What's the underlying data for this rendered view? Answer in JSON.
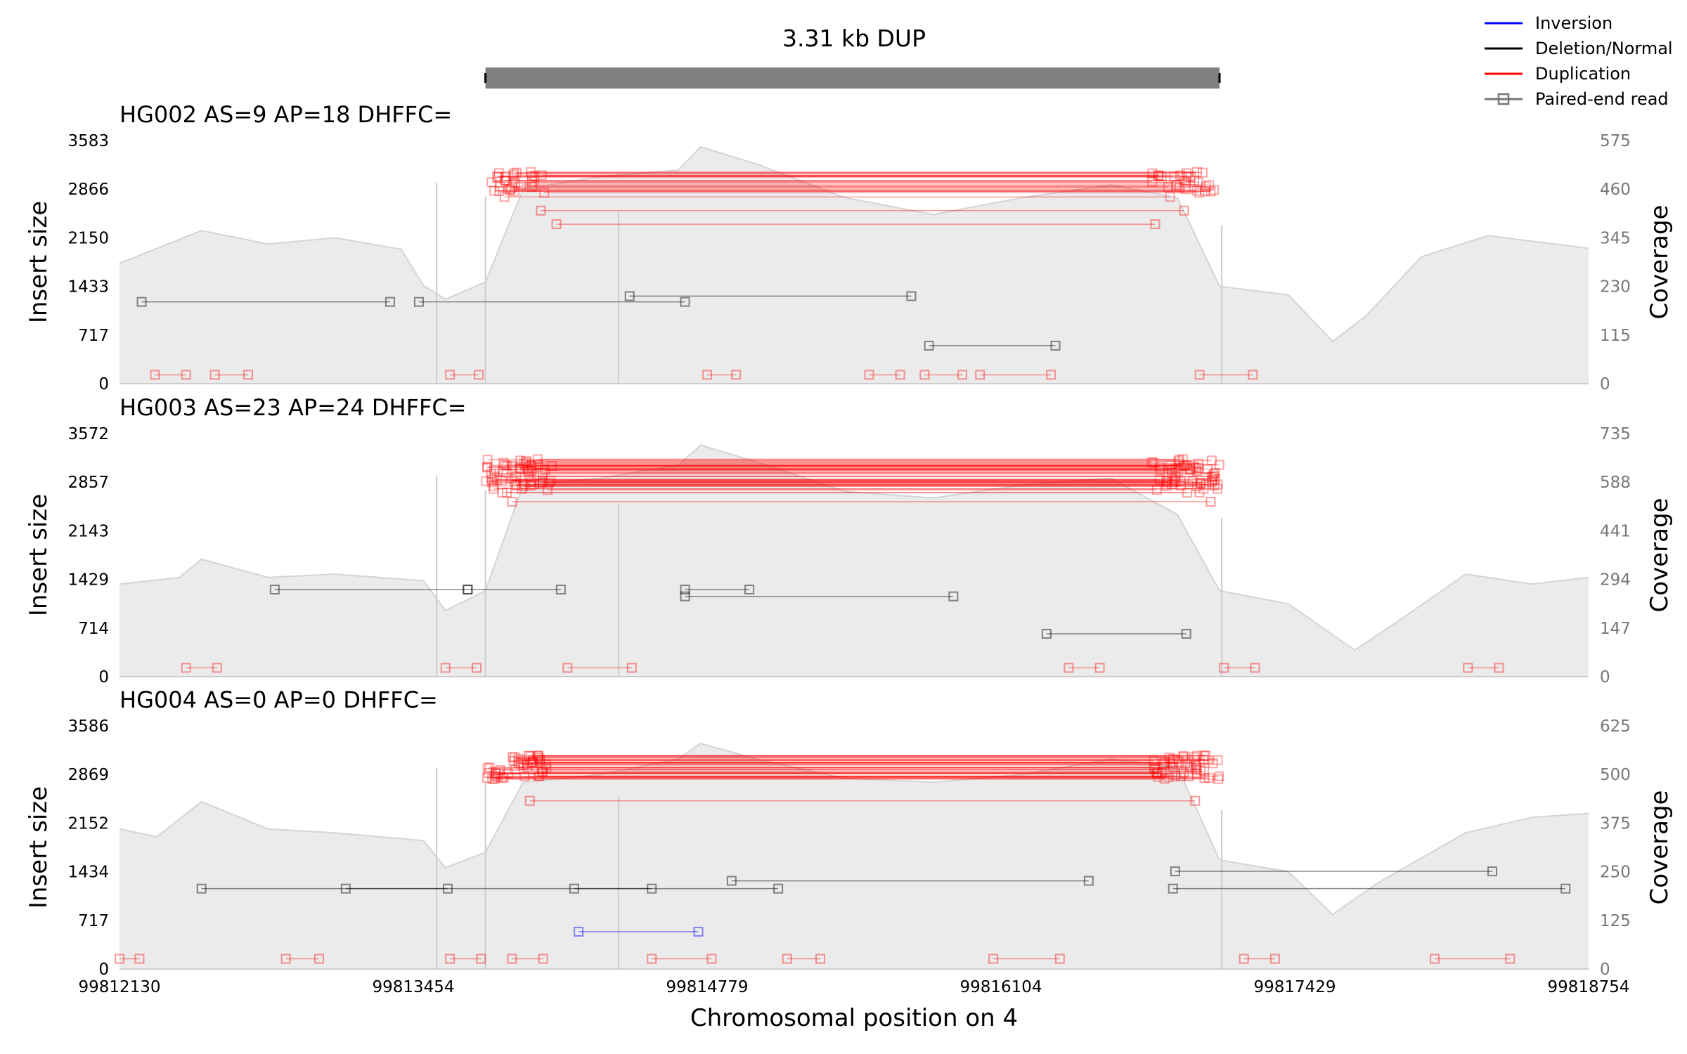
{
  "chart_data": {
    "type": "line",
    "title": "3.31 kb DUP",
    "xlabel": "Chromosomal position on 4",
    "x_ticks": [
      "99812130",
      "99813454",
      "99814779",
      "99816104",
      "99817429",
      "99818754"
    ],
    "xlim": [
      99812130,
      99818754
    ],
    "sv_region": [
      99813780,
      99817090
    ],
    "grid": false,
    "legend": {
      "placement": "top-right",
      "entries": [
        {
          "label": "Inversion",
          "color": "#0000ff"
        },
        {
          "label": "Deletion/Normal",
          "color": "#000000"
        },
        {
          "label": "Duplication",
          "color": "#ff0000"
        },
        {
          "label": "Paired-end read",
          "color": "#777777"
        }
      ]
    },
    "panels": [
      {
        "title": "HG002 AS=9 AP=18 DHFFC=",
        "ylabel_left": "Insert size",
        "ylabel_right": "Coverage",
        "yticks_left": [
          "3583",
          "2866",
          "2150",
          "1433",
          "717",
          "0"
        ],
        "yticks_right": [
          "575",
          "460",
          "345",
          "230",
          "115",
          "0"
        ],
        "ylim_left": [
          0,
          3583
        ],
        "ylim_right": [
          0,
          575
        ],
        "coverage_profile": [
          [
            99812130,
            285
          ],
          [
            99812300,
            320
          ],
          [
            99812500,
            362
          ],
          [
            99812800,
            330
          ],
          [
            99813100,
            345
          ],
          [
            99813400,
            318
          ],
          [
            99813500,
            232
          ],
          [
            99813600,
            200
          ],
          [
            99813780,
            240
          ],
          [
            99813950,
            460
          ],
          [
            99814300,
            490
          ],
          [
            99814650,
            505
          ],
          [
            99814750,
            560
          ],
          [
            99815000,
            520
          ],
          [
            99815400,
            440
          ],
          [
            99815800,
            400
          ],
          [
            99816200,
            440
          ],
          [
            99816600,
            470
          ],
          [
            99816900,
            440
          ],
          [
            99817090,
            230
          ],
          [
            99817400,
            210
          ],
          [
            99817600,
            100
          ],
          [
            99817750,
            160
          ],
          [
            99818000,
            300
          ],
          [
            99818300,
            350
          ],
          [
            99818754,
            320
          ]
        ],
        "dup_band": [
          2750,
          3120
        ],
        "dup_pairs": 28,
        "extra_dup_reads": [
          [
            99814030,
            99816930,
            2550
          ],
          [
            99814100,
            99816800,
            2350
          ]
        ],
        "deletion_normal_reads": [
          [
            99812230,
            99813350,
            1205
          ],
          [
            99813480,
            99814680,
            1205
          ],
          [
            99814430,
            99815700,
            1290
          ],
          [
            99815780,
            99816350,
            560
          ]
        ],
        "inversion_reads": [],
        "low_red_reads": [
          [
            99812290,
            99812430,
            130
          ],
          [
            99812560,
            99812710,
            130
          ],
          [
            99813620,
            99813750,
            130
          ],
          [
            99814780,
            99814910,
            130
          ],
          [
            99815510,
            99815650,
            130
          ],
          [
            99815760,
            99815930,
            130
          ],
          [
            99816010,
            99816330,
            130
          ],
          [
            99817000,
            99817240,
            130
          ]
        ]
      },
      {
        "title": "HG003 AS=23 AP=24 DHFFC=",
        "ylabel_left": "Insert size",
        "ylabel_right": "Coverage",
        "yticks_left": [
          "3572",
          "2857",
          "2143",
          "1429",
          "714",
          "0"
        ],
        "yticks_right": [
          "735",
          "588",
          "441",
          "294",
          "147",
          "0"
        ],
        "ylim_left": [
          0,
          3572
        ],
        "ylim_right": [
          0,
          735
        ],
        "coverage_profile": [
          [
            99812130,
            280
          ],
          [
            99812400,
            300
          ],
          [
            99812500,
            355
          ],
          [
            99812800,
            300
          ],
          [
            99813100,
            310
          ],
          [
            99813500,
            290
          ],
          [
            99813600,
            200
          ],
          [
            99813780,
            260
          ],
          [
            99813950,
            580
          ],
          [
            99814300,
            600
          ],
          [
            99814650,
            640
          ],
          [
            99814750,
            700
          ],
          [
            99815000,
            650
          ],
          [
            99815400,
            560
          ],
          [
            99815800,
            540
          ],
          [
            99816200,
            580
          ],
          [
            99816600,
            600
          ],
          [
            99816900,
            490
          ],
          [
            99817090,
            260
          ],
          [
            99817400,
            220
          ],
          [
            99817700,
            80
          ],
          [
            99817900,
            170
          ],
          [
            99818200,
            310
          ],
          [
            99818500,
            280
          ],
          [
            99818754,
            300
          ]
        ],
        "dup_band": [
          2700,
          3200
        ],
        "dup_pairs": 55,
        "extra_dup_reads": [
          [
            99813900,
            99817050,
            2570
          ]
        ],
        "deletion_normal_reads": [
          [
            99812830,
            99813700,
            1280
          ],
          [
            99813700,
            99814120,
            1280
          ],
          [
            99814680,
            99815890,
            1180
          ],
          [
            99814680,
            99814970,
            1280
          ],
          [
            99816310,
            99816940,
            630
          ]
        ],
        "inversion_reads": [],
        "low_red_reads": [
          [
            99812430,
            99812570,
            130
          ],
          [
            99813600,
            99813740,
            130
          ],
          [
            99814150,
            99814440,
            130
          ],
          [
            99816410,
            99816550,
            130
          ],
          [
            99817110,
            99817250,
            130
          ],
          [
            99818210,
            99818350,
            130
          ]
        ]
      },
      {
        "title": "HG004 AS=0 AP=0 DHFFC=",
        "ylabel_left": "Insert size",
        "ylabel_right": "Coverage",
        "yticks_left": [
          "3586",
          "2869",
          "2152",
          "1434",
          "717",
          "0"
        ],
        "yticks_right": [
          "625",
          "500",
          "375",
          "250",
          "125",
          "0"
        ],
        "ylim_left": [
          0,
          3586
        ],
        "ylim_right": [
          0,
          625
        ],
        "coverage_profile": [
          [
            99812130,
            360
          ],
          [
            99812300,
            340
          ],
          [
            99812500,
            430
          ],
          [
            99812800,
            360
          ],
          [
            99813100,
            350
          ],
          [
            99813500,
            330
          ],
          [
            99813600,
            260
          ],
          [
            99813780,
            300
          ],
          [
            99813950,
            480
          ],
          [
            99814300,
            500
          ],
          [
            99814650,
            540
          ],
          [
            99814750,
            580
          ],
          [
            99815000,
            540
          ],
          [
            99815400,
            490
          ],
          [
            99815800,
            480
          ],
          [
            99816200,
            500
          ],
          [
            99816600,
            540
          ],
          [
            99816900,
            520
          ],
          [
            99817090,
            280
          ],
          [
            99817400,
            250
          ],
          [
            99817600,
            140
          ],
          [
            99817800,
            220
          ],
          [
            99818200,
            350
          ],
          [
            99818500,
            390
          ],
          [
            99818754,
            400
          ]
        ],
        "dup_band": [
          2800,
          3150
        ],
        "dup_pairs": 45,
        "extra_dup_reads": [
          [
            99813980,
            99816980,
            2480
          ]
        ],
        "deletion_normal_reads": [
          [
            99812500,
            99813610,
            1185
          ],
          [
            99813150,
            99814530,
            1185
          ],
          [
            99814180,
            99815100,
            1185
          ],
          [
            99814890,
            99816500,
            1300
          ],
          [
            99816890,
            99818320,
            1440
          ],
          [
            99816880,
            99818650,
            1185
          ]
        ],
        "inversion_reads": [
          [
            99814200,
            99814740,
            550
          ]
        ],
        "low_red_reads": [
          [
            99812130,
            99812220,
            150
          ],
          [
            99812880,
            99813030,
            150
          ],
          [
            99813620,
            99813760,
            150
          ],
          [
            99813900,
            99814040,
            150
          ],
          [
            99814530,
            99814800,
            150
          ],
          [
            99815140,
            99815290,
            150
          ],
          [
            99816070,
            99816370,
            150
          ],
          [
            99817200,
            99817340,
            150
          ],
          [
            99818060,
            99818400,
            150
          ]
        ]
      }
    ]
  }
}
